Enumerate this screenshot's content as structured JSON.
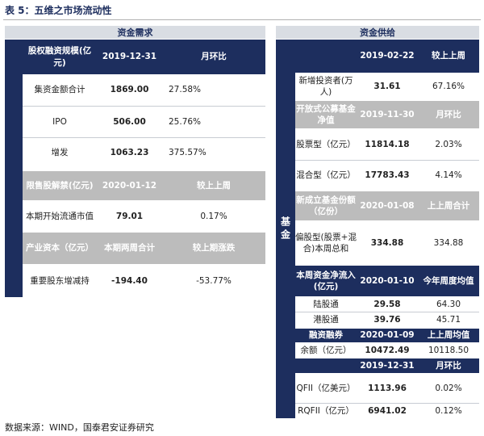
{
  "caption": "表 5：五维之市场流动性",
  "source": "数据来源：WIND，国泰君安证券研究",
  "left_panel": {
    "section_title": "资金需求",
    "equity_financing": {
      "label": "股权融资规模(亿元)",
      "date": "2019-12-31",
      "change_label": "月环比",
      "rows": [
        {
          "label": "集资金额合计",
          "value": "1869.00",
          "change": "27.58%"
        },
        {
          "label": "IPO",
          "value": "506.00",
          "change": "25.76%"
        },
        {
          "label": "增发",
          "value": "1063.23",
          "change": "375.57%"
        }
      ]
    },
    "lockup": {
      "label": "限售股解禁(亿元)",
      "date": "2020-01-12",
      "change_label": "较上上周",
      "rows": [
        {
          "label": "本期开始流通市值",
          "value": "79.01",
          "change": "0.17%"
        }
      ]
    },
    "industrial_capital": {
      "label": "产业资本（亿元）",
      "period": "本期两周合计",
      "change_label": "较上期涨跌",
      "rows": [
        {
          "label": "重要股东增减持",
          "value": "-194.40",
          "change": "-53.77%"
        }
      ]
    }
  },
  "right_panel": {
    "section_title": "资金供给",
    "side_label": "基金",
    "new_investors": {
      "date": "2019-02-22",
      "change_label": "较上上周",
      "rows": [
        {
          "label": "新增投资者(万人)",
          "value": "31.61",
          "change": "67.16%"
        }
      ]
    },
    "open_end_fund": {
      "label": "开放式公募基金净值",
      "date": "2019-11-30",
      "change_label": "月环比",
      "rows": [
        {
          "label": "股票型（亿元）",
          "value": "11814.18",
          "change": "2.03%"
        },
        {
          "label": "混合型（亿元）",
          "value": "17783.43",
          "change": "4.14%"
        }
      ]
    },
    "new_funds": {
      "label": "新成立基金份额（亿份）",
      "date": "2020-01-08",
      "change_label": "上上周合计",
      "rows": [
        {
          "label": "偏股型(股票+混合)本周总和",
          "value": "334.88",
          "change": "334.88"
        }
      ]
    },
    "northbound": {
      "label": "本周资金净流入(亿元)",
      "date": "2020-01-10",
      "change_label": "今年周度均值",
      "rows": [
        {
          "label": "陆股通",
          "value": "29.58",
          "change": "64.30"
        },
        {
          "label": "港股通",
          "value": "39.76",
          "change": "45.71"
        }
      ]
    },
    "margin": {
      "label": "融资融券",
      "date": "2020-01-09",
      "change_label": "上上周均值",
      "rows": [
        {
          "label": "余额（亿元）",
          "value": "10472.49",
          "change": "10118.50"
        }
      ]
    },
    "qfii": {
      "label": "",
      "date": "2019-12-31",
      "change_label": "月环比",
      "rows": [
        {
          "label": "QFII（亿美元）",
          "value": "1113.96",
          "change": "0.02%"
        },
        {
          "label": "RQFII（亿元）",
          "value": "6941.02",
          "change": "0.12%"
        }
      ]
    }
  }
}
